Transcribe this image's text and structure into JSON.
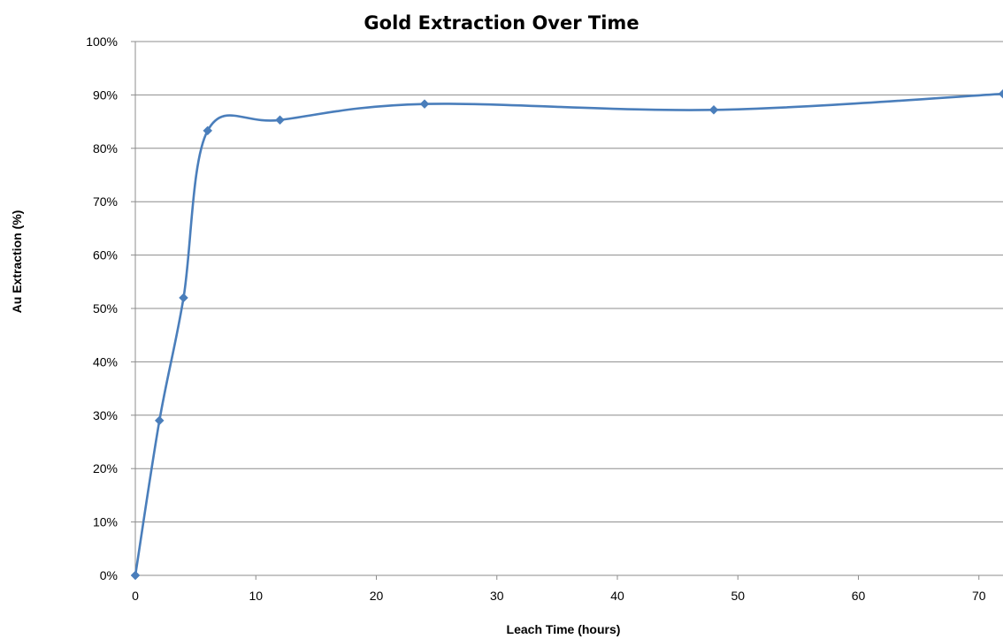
{
  "chart_data": {
    "type": "line",
    "title": "Gold Extraction Over Time",
    "xlabel": "Leach Time (hours)",
    "ylabel": "Au Extraction (%)",
    "xlim": [
      0,
      72
    ],
    "ylim": [
      0,
      100
    ],
    "x_ticks": [
      0,
      10,
      20,
      30,
      40,
      50,
      60,
      70
    ],
    "y_ticks": [
      "0%",
      "10%",
      "20%",
      "30%",
      "40%",
      "50%",
      "60%",
      "70%",
      "80%",
      "90%",
      "100%"
    ],
    "grid": "horizontal",
    "smooth": true,
    "series": [
      {
        "color": "#4A7EBB",
        "marker": "diamond",
        "points": [
          {
            "x": 0,
            "y": 0
          },
          {
            "x": 2,
            "y": 29
          },
          {
            "x": 4,
            "y": 52
          },
          {
            "x": 6,
            "y": 83.3
          },
          {
            "x": 12,
            "y": 85.3
          },
          {
            "x": 24,
            "y": 88.3
          },
          {
            "x": 48,
            "y": 87.2
          },
          {
            "x": 72,
            "y": 90.2
          }
        ]
      }
    ]
  }
}
